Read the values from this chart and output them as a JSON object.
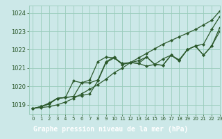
{
  "title": "Graphe pression niveau de la mer (hPa)",
  "background_color": "#cce8e8",
  "grid_color": "#99ccbb",
  "line_color": "#2d5a2d",
  "xlim": [
    -0.5,
    23
  ],
  "ylim": [
    1018.5,
    1024.4
  ],
  "yticks": [
    1019,
    1020,
    1021,
    1022,
    1023,
    1024
  ],
  "xticks": [
    0,
    1,
    2,
    3,
    4,
    5,
    6,
    7,
    8,
    9,
    10,
    11,
    12,
    13,
    14,
    15,
    16,
    17,
    18,
    19,
    20,
    21,
    22,
    23
  ],
  "series": [
    [
      1018.8,
      1018.85,
      1018.9,
      1019.0,
      1019.15,
      1019.35,
      1019.6,
      1019.85,
      1020.1,
      1020.4,
      1020.75,
      1021.0,
      1021.3,
      1021.55,
      1021.8,
      1022.05,
      1022.3,
      1022.5,
      1022.7,
      1022.9,
      1023.1,
      1023.35,
      1023.6,
      1024.1
    ],
    [
      1018.8,
      1018.9,
      1019.05,
      1019.35,
      1019.4,
      1019.45,
      1020.2,
      1020.2,
      1020.35,
      1021.35,
      1021.6,
      1021.2,
      1021.3,
      1021.25,
      1021.6,
      1021.2,
      1021.15,
      1021.7,
      1021.4,
      1022.0,
      1022.2,
      1022.3,
      1023.1,
      1023.8
    ],
    [
      1018.8,
      1018.9,
      1019.05,
      1019.35,
      1019.4,
      1020.3,
      1020.2,
      1020.35,
      1021.35,
      1021.6,
      1021.55,
      1021.2,
      1021.3,
      1021.25,
      1021.1,
      1021.2,
      1021.5,
      1021.7,
      1021.45,
      1022.0,
      1022.2,
      1021.7,
      1022.2,
      1023.2
    ],
    [
      1018.8,
      1018.9,
      1019.1,
      1019.35,
      1019.4,
      1019.45,
      1019.5,
      1019.6,
      1020.3,
      1021.3,
      1021.55,
      1021.25,
      1021.3,
      1021.4,
      1021.6,
      1021.2,
      1021.15,
      1021.7,
      1021.4,
      1022.0,
      1022.2,
      1021.7,
      1022.2,
      1023.0
    ]
  ],
  "marker": "D",
  "marker_size": 2.0,
  "line_width": 0.9,
  "tick_fontsize": 6,
  "xtick_fontsize": 5,
  "title_fontsize": 7,
  "title_bg": "#336633",
  "title_text_color": "white"
}
